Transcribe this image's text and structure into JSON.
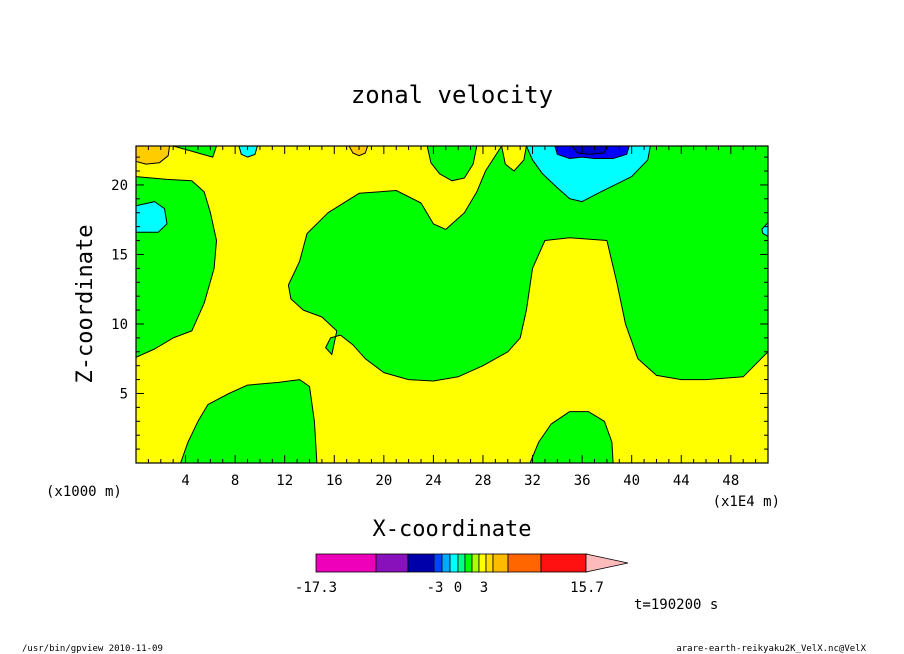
{
  "chart_data": {
    "type": "heatmap",
    "subtype": "filled-contour",
    "title": "zonal velocity",
    "xlabel": "X-coordinate",
    "ylabel": "Z-coordinate",
    "x_unit_left": "(x1000 m)",
    "x_unit_right": "(x1E4 m)",
    "xlim": [
      0,
      51
    ],
    "ylim": [
      0,
      22.8
    ],
    "xticks": [
      4,
      8,
      12,
      16,
      20,
      24,
      28,
      32,
      36,
      40,
      44,
      48
    ],
    "xtick_labels": [
      "4",
      "8",
      "12",
      "16",
      "20",
      "24",
      "28",
      "32",
      "36",
      "40",
      "44",
      "48"
    ],
    "yticks": [
      5,
      10,
      15,
      20
    ],
    "ytick_labels": [
      "5",
      "10",
      "15",
      "20"
    ],
    "grid": false,
    "regions": [
      {
        "name": "green-upper-left",
        "level_color": "#00ff00",
        "points": [
          [
            0,
            20.6
          ],
          [
            2.5,
            20.4
          ],
          [
            4.5,
            20.3
          ],
          [
            5.5,
            19.5
          ],
          [
            6,
            18
          ],
          [
            6.5,
            16
          ],
          [
            6.3,
            14
          ],
          [
            5.5,
            11.5
          ],
          [
            4.5,
            9.5
          ],
          [
            3,
            9
          ],
          [
            1.5,
            8.2
          ],
          [
            0,
            7.6
          ]
        ]
      },
      {
        "name": "green-upper-center",
        "level_color": "#00ff00",
        "points": [
          [
            12.3,
            12.8
          ],
          [
            13.2,
            14.5
          ],
          [
            13.8,
            16.5
          ],
          [
            15.5,
            18
          ],
          [
            18,
            19.4
          ],
          [
            21,
            19.6
          ],
          [
            23,
            18.7
          ],
          [
            24,
            17.2
          ],
          [
            25,
            16.8
          ],
          [
            26.5,
            18
          ],
          [
            27.5,
            19.5
          ],
          [
            28.2,
            21
          ],
          [
            29.5,
            22.8
          ],
          [
            51,
            22.8
          ],
          [
            51,
            8
          ],
          [
            49,
            6.2
          ],
          [
            46,
            6
          ],
          [
            44,
            6
          ],
          [
            42,
            6.3
          ],
          [
            40.5,
            7.5
          ],
          [
            39.5,
            10
          ],
          [
            38.8,
            13
          ],
          [
            38,
            16
          ],
          [
            35,
            16.2
          ],
          [
            33,
            16
          ],
          [
            32,
            14
          ],
          [
            31.5,
            11
          ],
          [
            31,
            9
          ],
          [
            30,
            8
          ],
          [
            28,
            7
          ],
          [
            26,
            6.2
          ],
          [
            24,
            5.9
          ],
          [
            22,
            6
          ],
          [
            20,
            6.5
          ],
          [
            18.5,
            7.5
          ],
          [
            17.5,
            8.5
          ],
          [
            16.5,
            9.2
          ],
          [
            15.7,
            9
          ],
          [
            15.3,
            8.3
          ],
          [
            15.8,
            7.8
          ],
          [
            16.2,
            9.5
          ],
          [
            15,
            10.5
          ],
          [
            13.5,
            11
          ],
          [
            12.5,
            11.8
          ]
        ]
      },
      {
        "name": "yellow-right-notch",
        "level_color": "#ffff00",
        "points": [
          [
            29.5,
            22.8
          ],
          [
            31.5,
            22.8
          ],
          [
            31.3,
            21.8
          ],
          [
            30.5,
            21
          ],
          [
            29.8,
            21.5
          ]
        ]
      },
      {
        "name": "green-top-small",
        "level_color": "#00ff00",
        "points": [
          [
            23.5,
            22.8
          ],
          [
            27.5,
            22.8
          ],
          [
            27.2,
            21.5
          ],
          [
            26.5,
            20.5
          ],
          [
            25.5,
            20.3
          ],
          [
            24.5,
            20.8
          ],
          [
            23.8,
            21.6
          ]
        ]
      },
      {
        "name": "green-top-left-small",
        "level_color": "#00ff00",
        "points": [
          [
            3,
            22.8
          ],
          [
            6.5,
            22.8
          ],
          [
            6.2,
            22
          ]
        ]
      },
      {
        "name": "green-lower-left",
        "level_color": "#00ff00",
        "points": [
          [
            3.6,
            0
          ],
          [
            14.6,
            0
          ],
          [
            14.4,
            3
          ],
          [
            14,
            5.5
          ],
          [
            13.2,
            6
          ],
          [
            11.5,
            5.8
          ],
          [
            9,
            5.6
          ],
          [
            7.5,
            5
          ],
          [
            5.8,
            4.2
          ],
          [
            5,
            3
          ],
          [
            4.2,
            1.5
          ]
        ]
      },
      {
        "name": "green-lower-right",
        "level_color": "#00ff00",
        "points": [
          [
            31.8,
            0
          ],
          [
            38.5,
            0
          ],
          [
            38.4,
            1.5
          ],
          [
            37.8,
            3
          ],
          [
            36.5,
            3.7
          ],
          [
            35,
            3.7
          ],
          [
            33.5,
            2.8
          ],
          [
            32.5,
            1.5
          ]
        ]
      },
      {
        "name": "cyan-top-right",
        "level_color": "#00ffff",
        "points": [
          [
            31.5,
            22.8
          ],
          [
            41.5,
            22.8
          ],
          [
            41.3,
            21.8
          ],
          [
            40,
            20.6
          ],
          [
            37.5,
            19.5
          ],
          [
            36,
            18.8
          ],
          [
            35,
            19
          ],
          [
            34,
            19.8
          ],
          [
            32.8,
            20.8
          ],
          [
            32,
            21.8
          ]
        ]
      },
      {
        "name": "cyan-left-edge",
        "level_color": "#00ffff",
        "points": [
          [
            0,
            16.6
          ],
          [
            1.8,
            16.6
          ],
          [
            2.5,
            17.2
          ],
          [
            2.3,
            18.3
          ],
          [
            1.5,
            18.8
          ],
          [
            0,
            18.5
          ]
        ]
      },
      {
        "name": "cyan-right-edge",
        "level_color": "#00ffff",
        "points": [
          [
            51,
            17.3
          ],
          [
            50.5,
            16.8
          ],
          [
            50.6,
            16.5
          ],
          [
            51,
            16.3
          ]
        ]
      },
      {
        "name": "cyan-top-small",
        "level_color": "#00ffff",
        "points": [
          [
            8.3,
            22.8
          ],
          [
            9.8,
            22.8
          ],
          [
            9.6,
            22.2
          ],
          [
            9,
            22
          ],
          [
            8.5,
            22.2
          ]
        ]
      },
      {
        "name": "blue-top",
        "level_color": "#0000ff",
        "points": [
          [
            33.8,
            22.8
          ],
          [
            39.8,
            22.8
          ],
          [
            39.6,
            22.2
          ],
          [
            38.5,
            21.9
          ],
          [
            37,
            21.9
          ],
          [
            36,
            22
          ],
          [
            35,
            21.9
          ],
          [
            34,
            22.2
          ]
        ]
      },
      {
        "name": "dark-blue-top",
        "level_color": "#0000cc",
        "points": [
          [
            35.2,
            22.8
          ],
          [
            38,
            22.8
          ],
          [
            37.8,
            22.3
          ],
          [
            36.6,
            22.2
          ],
          [
            35.6,
            22.3
          ]
        ]
      },
      {
        "name": "orange-top-left",
        "level_color": "#ffcc00",
        "points": [
          [
            0,
            22.8
          ],
          [
            2.7,
            22.8
          ],
          [
            2.6,
            22.1
          ],
          [
            1.9,
            21.6
          ],
          [
            0.8,
            21.5
          ],
          [
            0,
            21.7
          ]
        ]
      },
      {
        "name": "orange-top-small",
        "level_color": "#ffcc00",
        "points": [
          [
            17.2,
            22.8
          ],
          [
            18.7,
            22.8
          ],
          [
            18.5,
            22.3
          ],
          [
            18,
            22.1
          ],
          [
            17.5,
            22.3
          ]
        ]
      }
    ],
    "colorbar": {
      "levels": [
        -17.3,
        -12,
        -8,
        -5,
        -4,
        -3,
        -2,
        -1,
        0,
        1,
        2,
        3,
        5,
        8,
        12,
        15.7
      ],
      "colors": [
        "#ee00bb",
        "#8811bb",
        "#0000aa",
        "#0044ff",
        "#00aaff",
        "#00ffff",
        "#00ff88",
        "#00ff00",
        "#aaff00",
        "#ffff00",
        "#ffdd00",
        "#ffbb00",
        "#ff6600",
        "#ff1111",
        "#ff7777"
      ],
      "extend_color": "#ffbbbb",
      "labels": [
        "-17.3",
        "-3",
        "0",
        "3",
        "15.7"
      ]
    },
    "time_label": "t=190200 s",
    "footer_left": "/usr/bin/gpview  2010-11-09",
    "footer_right": "arare-earth-reikyaku2K_VelX.nc@VelX"
  }
}
